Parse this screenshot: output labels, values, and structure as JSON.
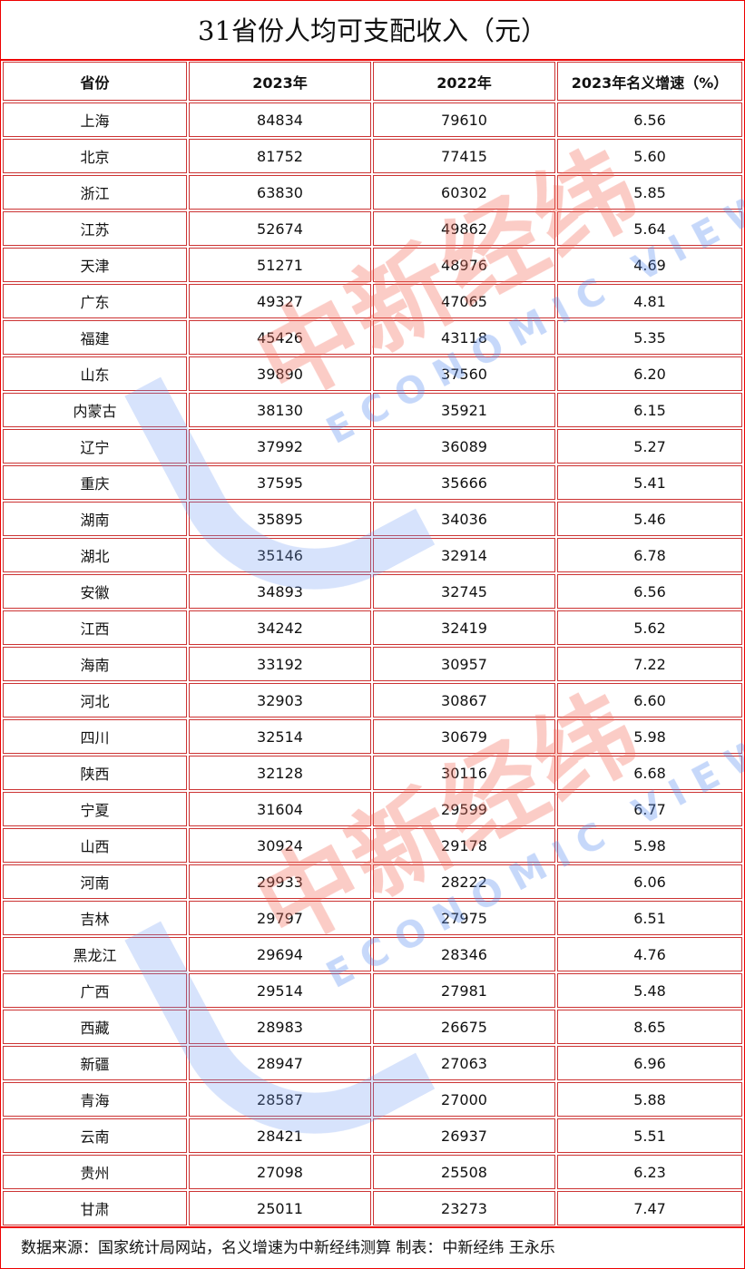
{
  "title": "31省份人均可支配收入（元）",
  "headers": [
    "省份",
    "2023年",
    "2022年",
    "2023年名义增速（%）"
  ],
  "rows": [
    [
      "上海",
      "84834",
      "79610",
      "6.56"
    ],
    [
      "北京",
      "81752",
      "77415",
      "5.60"
    ],
    [
      "浙江",
      "63830",
      "60302",
      "5.85"
    ],
    [
      "江苏",
      "52674",
      "49862",
      "5.64"
    ],
    [
      "天津",
      "51271",
      "48976",
      "4.69"
    ],
    [
      "广东",
      "49327",
      "47065",
      "4.81"
    ],
    [
      "福建",
      "45426",
      "43118",
      "5.35"
    ],
    [
      "山东",
      "39890",
      "37560",
      "6.20"
    ],
    [
      "内蒙古",
      "38130",
      "35921",
      "6.15"
    ],
    [
      "辽宁",
      "37992",
      "36089",
      "5.27"
    ],
    [
      "重庆",
      "37595",
      "35666",
      "5.41"
    ],
    [
      "湖南",
      "35895",
      "34036",
      "5.46"
    ],
    [
      "湖北",
      "35146",
      "32914",
      "6.78"
    ],
    [
      "安徽",
      "34893",
      "32745",
      "6.56"
    ],
    [
      "江西",
      "34242",
      "32419",
      "5.62"
    ],
    [
      "海南",
      "33192",
      "30957",
      "7.22"
    ],
    [
      "河北",
      "32903",
      "30867",
      "6.60"
    ],
    [
      "四川",
      "32514",
      "30679",
      "5.98"
    ],
    [
      "陕西",
      "32128",
      "30116",
      "6.68"
    ],
    [
      "宁夏",
      "31604",
      "29599",
      "6.77"
    ],
    [
      "山西",
      "30924",
      "29178",
      "5.98"
    ],
    [
      "河南",
      "29933",
      "28222",
      "6.06"
    ],
    [
      "吉林",
      "29797",
      "27975",
      "6.51"
    ],
    [
      "黑龙江",
      "29694",
      "28346",
      "4.76"
    ],
    [
      "广西",
      "29514",
      "27981",
      "5.48"
    ],
    [
      "西藏",
      "28983",
      "26675",
      "8.65"
    ],
    [
      "新疆",
      "28947",
      "27063",
      "6.96"
    ],
    [
      "青海",
      "28587",
      "27000",
      "5.88"
    ],
    [
      "云南",
      "28421",
      "26937",
      "5.51"
    ],
    [
      "贵州",
      "27098",
      "25508",
      "6.23"
    ],
    [
      "甘肃",
      "25011",
      "23273",
      "7.47"
    ]
  ],
  "footer": "数据来源：国家统计局网站，名义增速为中新经纬测算  制表：中新经纬 王永乐",
  "watermark": {
    "cn": "中新经纬",
    "en": "ECONOMIC VIEW"
  },
  "colors": {
    "border": "#e00000",
    "watermark_red": "#f26b5b",
    "watermark_blue": "#5b8df0"
  }
}
